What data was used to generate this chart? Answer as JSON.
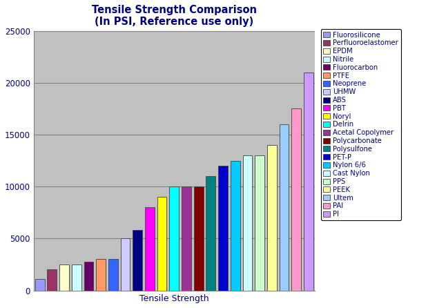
{
  "title": "Tensile Strength Comparison\n(In PSI, Reference use only)",
  "xlabel": "Tensile Strength",
  "materials": [
    "Fluorosilicone",
    "Perfluoroelastomer",
    "EPDM",
    "Nitrile",
    "Fluorocarbon",
    "PTFE",
    "Neoprene",
    "UHMW",
    "ABS",
    "PBT",
    "Noryl",
    "Delrin",
    "Acetal Copolymer",
    "Polycarbonate",
    "Polysulfone",
    "PET-P",
    "Nylon 6/6",
    "Cast Nylon",
    "PPS",
    "PEEK",
    "Ultem",
    "PAI",
    "PI"
  ],
  "values": [
    1100,
    2000,
    2500,
    2500,
    2750,
    3000,
    3000,
    5000,
    5800,
    8000,
    9000,
    10000,
    10000,
    10000,
    11000,
    12000,
    12500,
    13000,
    13000,
    14000,
    16000,
    17500,
    21000
  ],
  "colors": [
    "#9999FF",
    "#993366",
    "#FFFFCC",
    "#CCFFFF",
    "#660066",
    "#FF9966",
    "#3366FF",
    "#CCCCFF",
    "#000080",
    "#FF00FF",
    "#FFFF00",
    "#00FFFF",
    "#993399",
    "#800000",
    "#008080",
    "#0000CC",
    "#00CCFF",
    "#CCFFFF",
    "#CCFFCC",
    "#FFFF99",
    "#99CCFF",
    "#FF99CC",
    "#CC99FF"
  ],
  "ylim": [
    0,
    25000
  ],
  "yticks": [
    0,
    5000,
    10000,
    15000,
    20000,
    25000
  ],
  "plot_bg_color": "#C0C0C0",
  "fig_bg_color": "#FFFFFF",
  "title_color": "#000080",
  "xlabel_color": "#000080",
  "tick_color": "#000080",
  "grid_color": "#808080",
  "legend_fontsize": 7.2,
  "title_fontsize": 10.5,
  "xlabel_fontsize": 9
}
